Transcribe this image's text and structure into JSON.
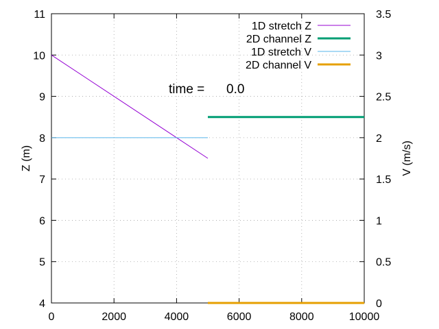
{
  "chart_data": {
    "type": "line",
    "annotation": {
      "label": "time =",
      "value": "0.0"
    },
    "xlim": [
      0,
      10000
    ],
    "xticks": [
      0,
      2000,
      4000,
      6000,
      8000,
      10000
    ],
    "xtick_labels": [
      "0",
      "2000",
      "4000",
      "6000",
      "8000",
      "10000"
    ],
    "ylim_left": [
      4,
      11
    ],
    "yticks_left": [
      4,
      5,
      6,
      7,
      8,
      9,
      10,
      11
    ],
    "ytick_labels_left": [
      "4",
      "5",
      "6",
      "7",
      "8",
      "9",
      "10",
      "11"
    ],
    "ylabel_left": "Z (m)",
    "ylim_right": [
      0,
      3.5
    ],
    "yticks_right": [
      0,
      0.5,
      1,
      1.5,
      2,
      2.5,
      3,
      3.5
    ],
    "ytick_labels_right": [
      "0",
      "0.5",
      "1",
      "1.5",
      "2",
      "2.5",
      "3",
      "3.5"
    ],
    "ylabel_right": "V (m/s)",
    "grid": true,
    "legend_position": "top-right",
    "series": [
      {
        "name": "1D stretch Z",
        "axis": "left",
        "color": "#9400d3",
        "x": [
          0,
          5000
        ],
        "y": [
          10,
          7.5
        ]
      },
      {
        "name": "2D channel Z",
        "axis": "left",
        "color": "#009e73",
        "x": [
          5000,
          10000
        ],
        "y": [
          8.5,
          8.5
        ]
      },
      {
        "name": "1D stretch V",
        "axis": "right",
        "color": "#56b4e9",
        "x": [
          0,
          5000
        ],
        "y": [
          2,
          2
        ]
      },
      {
        "name": "2D channel V",
        "axis": "right",
        "color": "#e69f00",
        "x": [
          5000,
          10000
        ],
        "y": [
          0,
          0
        ]
      }
    ]
  }
}
